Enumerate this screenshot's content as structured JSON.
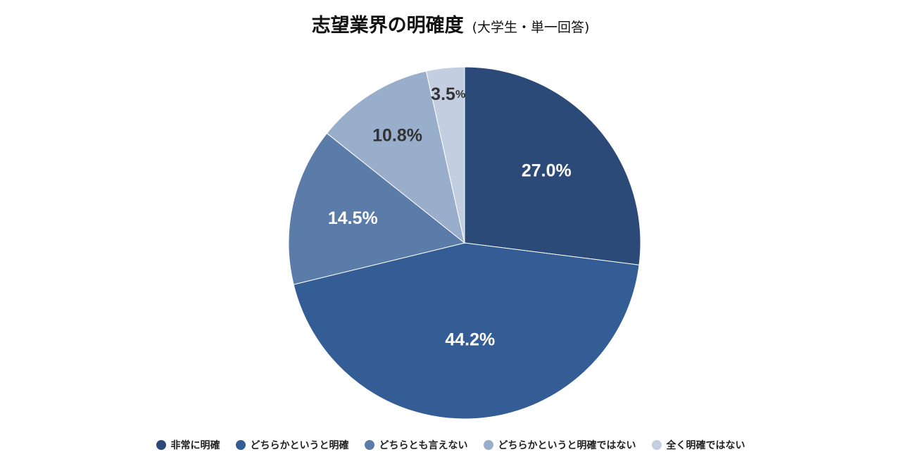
{
  "chart_data": {
    "type": "pie",
    "title": "志望業界の明確度",
    "subtitle": "(大学生・単一回答)",
    "categories": [
      "非常に明確",
      "どちらかというと明確",
      "どちらとも言えない",
      "どちらかというと明確ではない",
      "全く明確ではない"
    ],
    "values": [
      27.0,
      44.2,
      14.5,
      10.8,
      3.5
    ],
    "labels": [
      "27.0%",
      "44.2%",
      "14.5%",
      "10.8%",
      "3.5%"
    ],
    "colors": [
      "#2b4a78",
      "#345d95",
      "#5b7ba9",
      "#98aeca",
      "#c3cfe1"
    ],
    "label_colors": [
      "#ffffff",
      "#ffffff",
      "#ffffff",
      "#333333",
      "#333333"
    ],
    "start": "12 o'clock, clockwise",
    "legend_position": "bottom"
  }
}
